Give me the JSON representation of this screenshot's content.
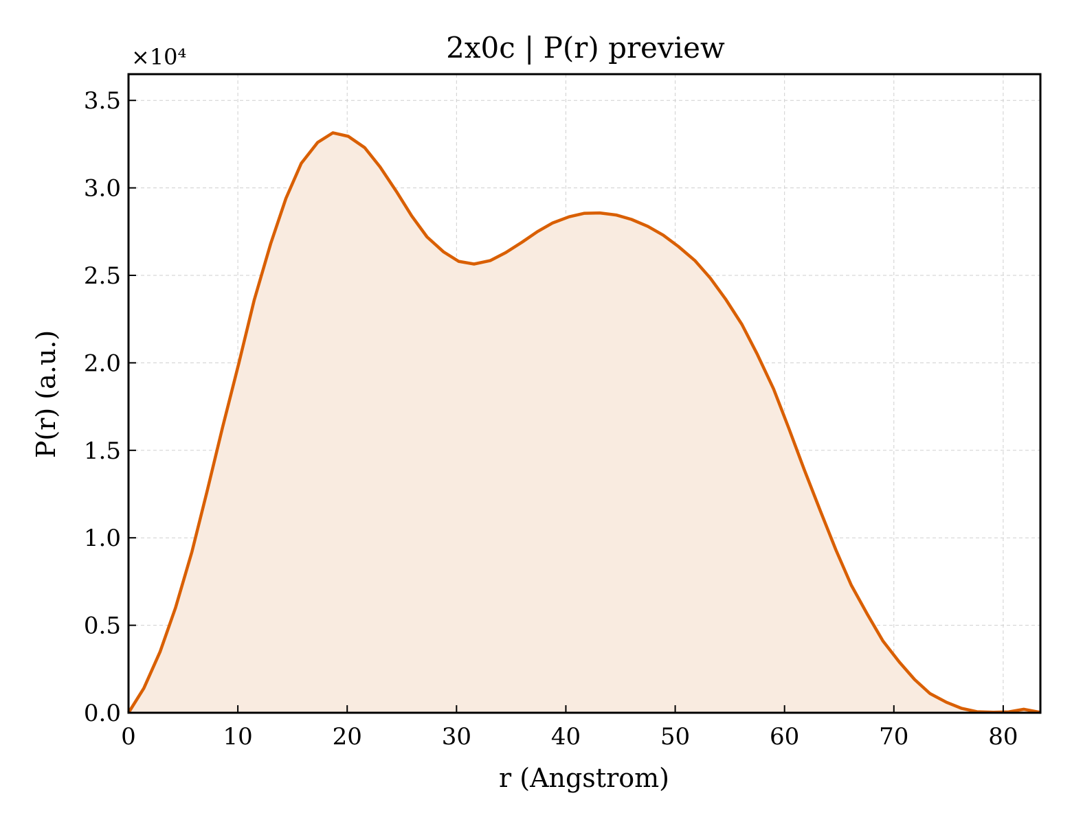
{
  "chart_data": {
    "type": "area",
    "title": "2x0c | P(r) preview",
    "xlabel": "r (Angstrom)",
    "ylabel": "P(r) (a.u.)",
    "y_multiplier_label": "×10⁴",
    "y_multiplier": 10000,
    "xlim": [
      0,
      83.4
    ],
    "ylim": [
      0,
      36500
    ],
    "x_ticks": [
      0,
      10,
      20,
      30,
      40,
      50,
      60,
      70,
      80
    ],
    "x_tick_labels": [
      "0",
      "10",
      "20",
      "30",
      "40",
      "50",
      "60",
      "70",
      "80"
    ],
    "y_ticks": [
      0,
      5000,
      10000,
      15000,
      20000,
      25000,
      30000,
      35000
    ],
    "y_tick_labels": [
      "0.0",
      "0.5",
      "1.0",
      "1.5",
      "2.0",
      "2.5",
      "3.0",
      "3.5"
    ],
    "grid": true,
    "line_color": "#d95f02",
    "fill_color": "#f9ebe0",
    "series": [
      {
        "x": [
          0,
          1.4,
          2.9,
          4.3,
          5.8,
          7.2,
          8.6,
          10.1,
          11.5,
          13.0,
          14.4,
          15.8,
          17.3,
          18.7,
          20.1,
          21.6,
          23.0,
          24.5,
          25.9,
          27.3,
          28.8,
          30.2,
          31.6,
          33.1,
          34.5,
          36.0,
          37.4,
          38.8,
          40.3,
          41.7,
          43.1,
          44.6,
          46.0,
          47.5,
          48.9,
          50.3,
          51.8,
          53.2,
          54.6,
          56.1,
          57.5,
          59.0,
          60.4,
          61.8,
          63.3,
          64.7,
          66.1,
          67.6,
          69.0,
          70.5,
          71.9,
          73.3,
          74.8,
          76.2,
          77.6,
          79.1,
          80.5,
          81.9,
          83.4
        ],
        "y": [
          0,
          1400,
          3500,
          6000,
          9200,
          12700,
          16300,
          20000,
          23600,
          26800,
          29400,
          31400,
          32600,
          33150,
          32950,
          32300,
          31200,
          29800,
          28400,
          27200,
          26350,
          25800,
          25650,
          25850,
          26300,
          26900,
          27500,
          28000,
          28350,
          28550,
          28570,
          28450,
          28200,
          27800,
          27300,
          26650,
          25850,
          24850,
          23650,
          22200,
          20500,
          18500,
          16250,
          13900,
          11500,
          9300,
          7300,
          5600,
          4100,
          2900,
          1900,
          1100,
          600,
          250,
          60,
          30,
          50,
          200,
          20
        ]
      }
    ]
  }
}
